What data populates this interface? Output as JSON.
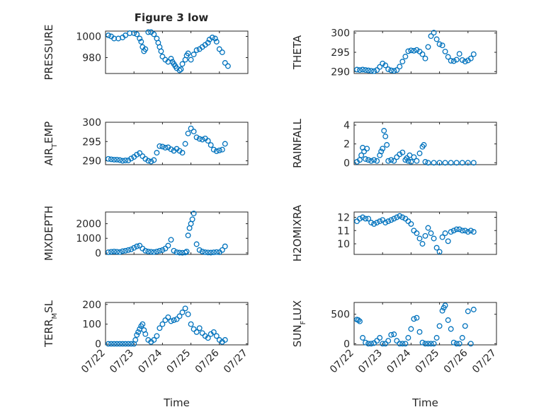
{
  "title": "Figure 3 low",
  "colors": {
    "marker": "#0072BD",
    "axis": "#262626",
    "grid": "#c8c8c8"
  },
  "chart_data": [
    {
      "type": "scatter",
      "panel": "top-left",
      "ylabel": "PRESSURE",
      "xlabel": "",
      "ylim": [
        965,
        1005
      ],
      "yticks": [
        980,
        1000
      ],
      "ytick_labels": [
        "980",
        "1000"
      ],
      "xlim": [
        0,
        5
      ],
      "xticks": [
        0,
        1,
        2,
        3,
        4,
        5
      ],
      "xtick_labels": [],
      "grid": true,
      "x": [
        0.1,
        0.2,
        0.3,
        0.45,
        0.6,
        0.7,
        0.85,
        1.0,
        1.1,
        1.2,
        1.25,
        1.3,
        1.35,
        1.4,
        1.5,
        1.6,
        1.7,
        1.8,
        1.85,
        1.9,
        1.95,
        2.0,
        2.1,
        2.2,
        2.3,
        2.35,
        2.4,
        2.45,
        2.5,
        2.6,
        2.65,
        2.7,
        2.8,
        2.85,
        2.9,
        3.0,
        3.1,
        3.2,
        3.3,
        3.4,
        3.5,
        3.6,
        3.65,
        3.75,
        3.85,
        3.9,
        4.0,
        4.1,
        4.2,
        4.3
      ],
      "y": [
        1001,
        1000,
        998,
        998,
        999,
        1001,
        1003,
        1003,
        1002,
        998,
        995,
        990,
        986,
        988,
        1004,
        1004,
        1002,
        998,
        994,
        990,
        986,
        981,
        978,
        976,
        979,
        976,
        974,
        972,
        970,
        968,
        969,
        974,
        978,
        982,
        984,
        978,
        983,
        987,
        988,
        990,
        992,
        994,
        997,
        999,
        998,
        995,
        988,
        985,
        975,
        972
      ]
    },
    {
      "type": "scatter",
      "panel": "top-right",
      "ylabel": "THETA",
      "xlabel": "",
      "ylim": [
        289.5,
        300.5
      ],
      "yticks": [
        290,
        295,
        300
      ],
      "ytick_labels": [
        "290",
        "295",
        "300"
      ],
      "xlim": [
        0,
        5
      ],
      "xticks": [
        0,
        1,
        2,
        3,
        4,
        5
      ],
      "xtick_labels": [],
      "grid": true,
      "x": [
        0.1,
        0.2,
        0.3,
        0.4,
        0.5,
        0.6,
        0.7,
        0.8,
        0.9,
        1.0,
        1.1,
        1.2,
        1.3,
        1.4,
        1.5,
        1.6,
        1.7,
        1.8,
        1.9,
        2.0,
        2.1,
        2.2,
        2.3,
        2.4,
        2.5,
        2.6,
        2.7,
        2.8,
        2.9,
        3.0,
        3.1,
        3.2,
        3.3,
        3.4,
        3.5,
        3.6,
        3.7,
        3.8,
        3.9,
        4.0,
        4.1,
        4.2
      ],
      "y": [
        290.5,
        290.4,
        290.5,
        290.4,
        290.3,
        290.2,
        290.1,
        290.4,
        291.2,
        292.1,
        291.6,
        290.6,
        290.3,
        290.2,
        290.4,
        291.3,
        292.6,
        293.9,
        295.3,
        295.5,
        295.4,
        295.6,
        295.2,
        294.5,
        293.4,
        296.4,
        299.2,
        300.1,
        298.4,
        297.1,
        296.8,
        295.2,
        293.8,
        292.8,
        292.7,
        293.1,
        294.6,
        293.0,
        292.6,
        292.9,
        293.4,
        294.5
      ]
    },
    {
      "type": "scatter",
      "panel": "second-left",
      "ylabel": "AIR_TEMP",
      "xlabel": "",
      "ylim": [
        289,
        300
      ],
      "yticks": [
        290,
        295,
        300
      ],
      "ytick_labels": [
        "290",
        "295",
        "300"
      ],
      "xlim": [
        0,
        5
      ],
      "xticks": [
        0,
        1,
        2,
        3,
        4,
        5
      ],
      "xtick_labels": [],
      "grid": true,
      "x": [
        0.1,
        0.2,
        0.3,
        0.4,
        0.5,
        0.6,
        0.7,
        0.8,
        0.9,
        1.0,
        1.1,
        1.2,
        1.3,
        1.4,
        1.5,
        1.6,
        1.7,
        1.8,
        1.9,
        2.0,
        2.1,
        2.2,
        2.3,
        2.4,
        2.5,
        2.6,
        2.7,
        2.8,
        2.9,
        3.0,
        3.1,
        3.2,
        3.3,
        3.4,
        3.5,
        3.6,
        3.7,
        3.8,
        3.9,
        4.0,
        4.1,
        4.2
      ],
      "y": [
        290.5,
        290.4,
        290.3,
        290.3,
        290.2,
        290.0,
        290.1,
        290.1,
        290.6,
        291.0,
        291.6,
        292.0,
        291.2,
        290.5,
        290.0,
        289.8,
        290.2,
        292.1,
        293.8,
        293.7,
        293.4,
        293.5,
        293.0,
        292.6,
        293.1,
        292.6,
        292.1,
        294.4,
        297.1,
        298.4,
        297.6,
        296.1,
        295.7,
        295.5,
        295.8,
        295.2,
        294.1,
        292.9,
        292.5,
        292.7,
        292.9,
        294.4
      ]
    },
    {
      "type": "scatter",
      "panel": "second-right",
      "ylabel": "RAINFALL",
      "xlabel": "",
      "ylim": [
        -0.2,
        4.3
      ],
      "yticks": [
        0,
        2,
        4
      ],
      "ytick_labels": [
        "0",
        "2",
        "4"
      ],
      "xlim": [
        0,
        5
      ],
      "xticks": [
        0,
        1,
        2,
        3,
        4,
        5
      ],
      "xtick_labels": [],
      "grid": true,
      "x": [
        0.1,
        0.2,
        0.25,
        0.3,
        0.35,
        0.4,
        0.45,
        0.5,
        0.6,
        0.7,
        0.8,
        0.9,
        0.95,
        1.0,
        1.05,
        1.1,
        1.15,
        1.2,
        1.3,
        1.4,
        1.5,
        1.6,
        1.7,
        1.8,
        1.85,
        1.9,
        1.95,
        2.0,
        2.1,
        2.2,
        2.3,
        2.4,
        2.45,
        2.5,
        2.6,
        2.8,
        3.0,
        3.2,
        3.4,
        3.6,
        3.8,
        4.0,
        4.2
      ],
      "y": [
        0.1,
        0.3,
        0.8,
        1.6,
        1.2,
        0.4,
        1.5,
        0.3,
        0.2,
        0.3,
        0.2,
        0.8,
        1.2,
        1.5,
        3.4,
        2.8,
        1.9,
        0.2,
        0.3,
        0.2,
        0.6,
        0.9,
        1.1,
        0.3,
        0.5,
        0.2,
        0.8,
        0.1,
        0.6,
        0.2,
        1.0,
        1.7,
        1.9,
        0.1,
        0.0,
        0.0,
        0.0,
        0.0,
        0.0,
        0.0,
        0.0,
        0.0,
        0.0
      ]
    },
    {
      "type": "scatter",
      "panel": "third-left",
      "ylabel": "MIXDEPTH",
      "xlabel": "",
      "ylim": [
        -100,
        2800
      ],
      "yticks": [
        0,
        1000,
        2000
      ],
      "ytick_labels": [
        "0",
        "1000",
        "2000"
      ],
      "xlim": [
        0,
        5
      ],
      "xticks": [
        0,
        1,
        2,
        3,
        4,
        5
      ],
      "xtick_labels": [],
      "grid": true,
      "x": [
        0.1,
        0.2,
        0.3,
        0.4,
        0.5,
        0.6,
        0.7,
        0.8,
        0.9,
        1.0,
        1.1,
        1.2,
        1.3,
        1.4,
        1.5,
        1.6,
        1.7,
        1.8,
        1.9,
        2.0,
        2.1,
        2.2,
        2.3,
        2.4,
        2.5,
        2.6,
        2.7,
        2.8,
        2.85,
        2.9,
        2.95,
        3.0,
        3.05,
        3.1,
        3.2,
        3.3,
        3.4,
        3.5,
        3.6,
        3.7,
        3.8,
        3.9,
        4.0,
        4.1,
        4.2
      ],
      "y": [
        50,
        80,
        100,
        80,
        60,
        120,
        150,
        200,
        250,
        350,
        450,
        500,
        300,
        150,
        100,
        80,
        60,
        100,
        150,
        200,
        300,
        500,
        900,
        150,
        50,
        20,
        10,
        30,
        100,
        1200,
        1700,
        2000,
        2300,
        2700,
        600,
        200,
        100,
        50,
        30,
        20,
        40,
        60,
        50,
        200,
        450
      ]
    },
    {
      "type": "scatter",
      "panel": "third-right",
      "ylabel": "H2OMIXRA",
      "xlabel": "",
      "ylim": [
        9.2,
        12.4
      ],
      "yticks": [
        10,
        11,
        12
      ],
      "ytick_labels": [
        "10",
        "11",
        "12"
      ],
      "xlim": [
        0,
        5
      ],
      "xticks": [
        0,
        1,
        2,
        3,
        4,
        5
      ],
      "xtick_labels": [],
      "grid": true,
      "x": [
        0.1,
        0.2,
        0.3,
        0.4,
        0.5,
        0.6,
        0.7,
        0.8,
        0.9,
        1.0,
        1.1,
        1.2,
        1.3,
        1.4,
        1.5,
        1.6,
        1.7,
        1.8,
        1.9,
        2.0,
        2.1,
        2.2,
        2.3,
        2.4,
        2.5,
        2.6,
        2.7,
        2.8,
        2.9,
        3.0,
        3.1,
        3.2,
        3.3,
        3.4,
        3.5,
        3.6,
        3.7,
        3.8,
        3.9,
        4.0,
        4.1,
        4.2
      ],
      "y": [
        11.7,
        11.9,
        12.0,
        11.9,
        11.9,
        11.6,
        11.5,
        11.6,
        11.7,
        11.8,
        11.6,
        11.7,
        11.8,
        11.9,
        12.0,
        12.1,
        12.0,
        11.9,
        11.7,
        11.5,
        11.0,
        10.8,
        10.4,
        10.0,
        10.6,
        11.2,
        10.8,
        10.4,
        9.7,
        9.4,
        10.5,
        10.8,
        10.2,
        10.9,
        11.0,
        11.1,
        11.1,
        11.0,
        11.0,
        10.9,
        11.0,
        10.9
      ]
    },
    {
      "type": "scatter",
      "panel": "bottom-left",
      "ylabel": "TERR_MSL",
      "xlabel": "Time",
      "ylim": [
        -5,
        210
      ],
      "yticks": [
        0,
        100,
        200
      ],
      "ytick_labels": [
        "0",
        "100",
        "200"
      ],
      "xlim": [
        0,
        5
      ],
      "xticks": [
        0,
        1,
        2,
        3,
        4,
        5
      ],
      "xtick_labels": [
        "07/22",
        "07/23",
        "07/24",
        "07/25",
        "07/26",
        "07/27"
      ],
      "grid": true,
      "x": [
        0.1,
        0.2,
        0.3,
        0.4,
        0.5,
        0.6,
        0.7,
        0.8,
        0.9,
        1.0,
        1.05,
        1.1,
        1.15,
        1.2,
        1.25,
        1.3,
        1.35,
        1.4,
        1.5,
        1.6,
        1.7,
        1.8,
        1.9,
        2.0,
        2.1,
        2.2,
        2.3,
        2.4,
        2.5,
        2.6,
        2.7,
        2.8,
        2.9,
        3.0,
        3.1,
        3.2,
        3.3,
        3.4,
        3.5,
        3.6,
        3.7,
        3.8,
        3.9,
        4.0,
        4.1,
        4.2
      ],
      "y": [
        0,
        0,
        0,
        0,
        0,
        0,
        0,
        0,
        0,
        0,
        20,
        45,
        60,
        75,
        90,
        100,
        70,
        50,
        20,
        10,
        20,
        40,
        80,
        100,
        120,
        135,
        115,
        120,
        125,
        140,
        160,
        180,
        150,
        100,
        75,
        60,
        80,
        55,
        40,
        30,
        50,
        60,
        40,
        20,
        10,
        20
      ]
    },
    {
      "type": "scatter",
      "panel": "bottom-right",
      "ylabel": "SUN_FLUX",
      "xlabel": "Time",
      "ylim": [
        -20,
        700
      ],
      "yticks": [
        0,
        500
      ],
      "ytick_labels": [
        "0",
        "500"
      ],
      "xlim": [
        0,
        5
      ],
      "xticks": [
        0,
        1,
        2,
        3,
        4,
        5
      ],
      "xtick_labels": [
        "07/22",
        "07/23",
        "07/24",
        "07/25",
        "07/26",
        "07/27"
      ],
      "grid": true,
      "x": [
        0.1,
        0.15,
        0.2,
        0.3,
        0.4,
        0.5,
        0.6,
        0.7,
        0.8,
        0.9,
        1.0,
        1.1,
        1.2,
        1.3,
        1.4,
        1.5,
        1.6,
        1.7,
        1.8,
        1.9,
        2.0,
        2.1,
        2.2,
        2.3,
        2.4,
        2.5,
        2.6,
        2.7,
        2.8,
        2.9,
        3.0,
        3.1,
        3.15,
        3.2,
        3.3,
        3.4,
        3.5,
        3.6,
        3.7,
        3.8,
        3.9,
        4.0,
        4.1,
        4.2
      ],
      "y": [
        410,
        400,
        380,
        100,
        20,
        0,
        0,
        10,
        50,
        100,
        0,
        0,
        50,
        150,
        160,
        50,
        0,
        0,
        0,
        100,
        250,
        420,
        440,
        200,
        20,
        0,
        0,
        0,
        0,
        100,
        300,
        560,
        610,
        650,
        400,
        250,
        20,
        0,
        0,
        100,
        300,
        550,
        0,
        580
      ]
    }
  ]
}
